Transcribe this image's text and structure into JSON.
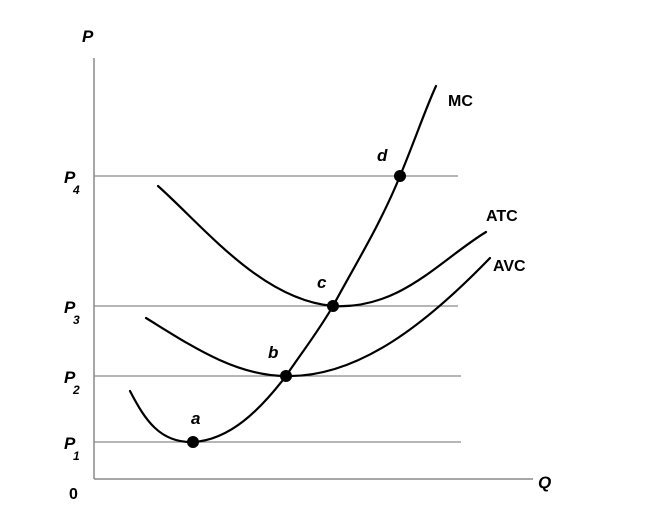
{
  "axes": {
    "y_label": "P",
    "x_label": "Q",
    "origin_label": "0"
  },
  "price_levels": [
    {
      "main": "P",
      "sub": "4"
    },
    {
      "main": "P",
      "sub": "3"
    },
    {
      "main": "P",
      "sub": "2"
    },
    {
      "main": "P",
      "sub": "1"
    }
  ],
  "curves": {
    "mc": "MC",
    "atc": "ATC",
    "avc": "AVC"
  },
  "points": [
    "a",
    "b",
    "c",
    "d"
  ]
}
